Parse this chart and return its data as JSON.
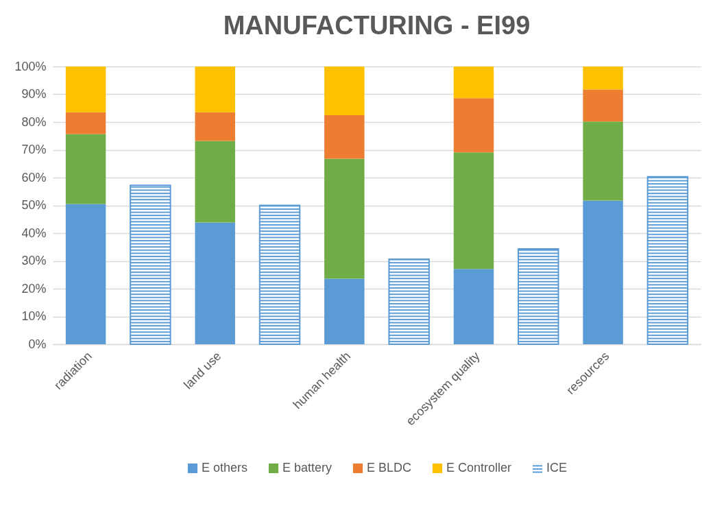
{
  "chart_data": {
    "type": "bar",
    "title": "MANUFACTURING - EI99",
    "categories": [
      "radiation",
      null,
      "land use",
      null,
      "human health",
      null,
      "ecosystem quality",
      null,
      "resources",
      null
    ],
    "stacked": true,
    "series": [
      {
        "name": "E others",
        "color": "#5b9bd5",
        "values": [
          50.5,
          null,
          43.8,
          null,
          23.6,
          null,
          27.1,
          null,
          51.7,
          null
        ]
      },
      {
        "name": "E battery",
        "color": "#70ad47",
        "values": [
          25.2,
          null,
          29.4,
          null,
          43.2,
          null,
          42.0,
          null,
          28.5,
          null
        ]
      },
      {
        "name": "E BLDC",
        "color": "#ed7d31",
        "values": [
          7.8,
          null,
          10.3,
          null,
          15.7,
          null,
          19.5,
          null,
          11.5,
          null
        ]
      },
      {
        "name": "E Controller",
        "color": "#ffc000",
        "values": [
          16.5,
          null,
          16.5,
          null,
          17.5,
          null,
          11.4,
          null,
          8.3,
          null
        ]
      },
      {
        "name": "ICE",
        "color": "#5b9bd5",
        "values": [
          null,
          57.2,
          null,
          50.0,
          null,
          30.6,
          null,
          34.3,
          null,
          60.3
        ]
      }
    ],
    "ylim": [
      0,
      100
    ],
    "yticks": [
      {
        "value": 0,
        "label": "0%"
      },
      {
        "value": 10,
        "label": "10%"
      },
      {
        "value": 20,
        "label": "20%"
      },
      {
        "value": 30,
        "label": "30%"
      },
      {
        "value": 40,
        "label": "40%"
      },
      {
        "value": 50,
        "label": "50%"
      },
      {
        "value": 60,
        "label": "60%"
      },
      {
        "value": 70,
        "label": "70%"
      },
      {
        "value": 80,
        "label": "80%"
      },
      {
        "value": 90,
        "label": "90%"
      },
      {
        "value": 100,
        "label": "100%"
      }
    ],
    "grid": "y",
    "legend": "bottom"
  }
}
